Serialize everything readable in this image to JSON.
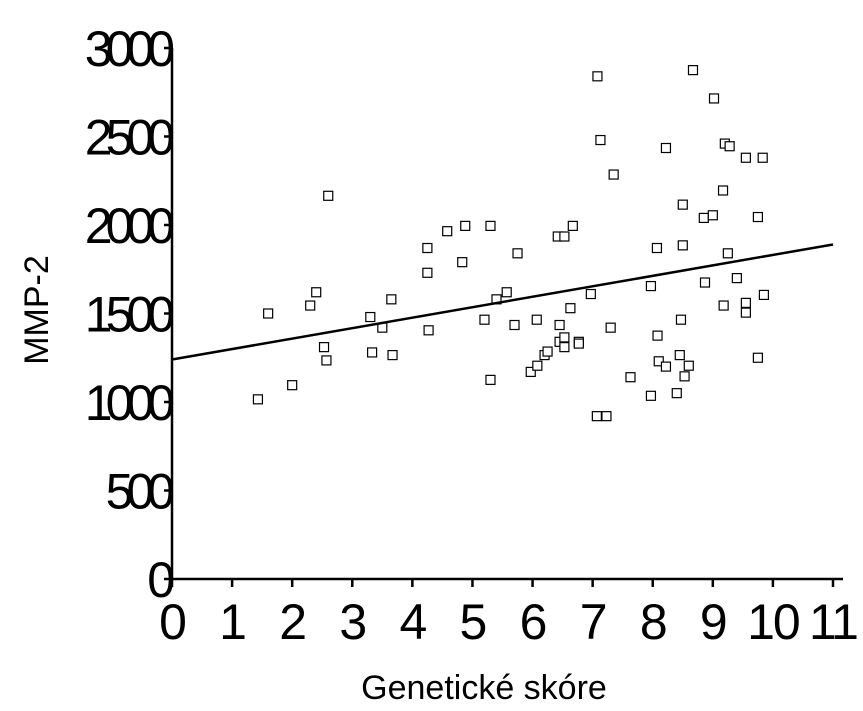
{
  "chart_data": {
    "type": "scatter",
    "title": "",
    "xlabel": "Genetické skóre",
    "ylabel": "MMP-2",
    "xlim": [
      0,
      11
    ],
    "ylim": [
      0,
      3000
    ],
    "x_ticks": [
      "0",
      "1",
      "2",
      "3",
      "4",
      "5",
      "6",
      "7",
      "8",
      "9",
      "10",
      "11"
    ],
    "y_ticks": [
      "0",
      "500",
      "1000",
      "1500",
      "2000",
      "2500",
      "3000"
    ],
    "grid": false,
    "marker": "open-square",
    "trendline": {
      "type": "linear",
      "x": [
        0,
        11
      ],
      "y": [
        1240,
        1890
      ]
    },
    "series": [
      {
        "points": [
          [
            1.43,
            1015
          ],
          [
            1.6,
            1500
          ],
          [
            2.0,
            1095
          ],
          [
            2.3,
            1545
          ],
          [
            2.4,
            1620
          ],
          [
            2.53,
            1310
          ],
          [
            2.57,
            1235
          ],
          [
            2.6,
            2165
          ],
          [
            3.3,
            1480
          ],
          [
            3.33,
            1280
          ],
          [
            3.5,
            1420
          ],
          [
            3.65,
            1580
          ],
          [
            3.67,
            1265
          ],
          [
            4.25,
            1870
          ],
          [
            4.25,
            1730
          ],
          [
            4.27,
            1405
          ],
          [
            4.58,
            1965
          ],
          [
            4.83,
            1790
          ],
          [
            4.88,
            1995
          ],
          [
            5.2,
            1465
          ],
          [
            5.3,
            1995
          ],
          [
            5.3,
            1125
          ],
          [
            5.4,
            1580
          ],
          [
            5.57,
            1620
          ],
          [
            5.7,
            1435
          ],
          [
            5.75,
            1840
          ],
          [
            5.97,
            1170
          ],
          [
            6.07,
            1465
          ],
          [
            6.08,
            1205
          ],
          [
            6.2,
            1265
          ],
          [
            6.25,
            1285
          ],
          [
            6.42,
            1935
          ],
          [
            6.45,
            1435
          ],
          [
            6.45,
            1340
          ],
          [
            6.53,
            1935
          ],
          [
            6.53,
            1365
          ],
          [
            6.53,
            1310
          ],
          [
            6.63,
            1530
          ],
          [
            6.67,
            1995
          ],
          [
            6.77,
            1340
          ],
          [
            6.77,
            1330
          ],
          [
            6.97,
            1610
          ],
          [
            7.07,
            920
          ],
          [
            7.08,
            2840
          ],
          [
            7.13,
            2480
          ],
          [
            7.23,
            920
          ],
          [
            7.3,
            1420
          ],
          [
            7.35,
            2285
          ],
          [
            7.63,
            1140
          ],
          [
            7.97,
            1655
          ],
          [
            7.97,
            1035
          ],
          [
            8.07,
            1870
          ],
          [
            8.08,
            1375
          ],
          [
            8.1,
            1230
          ],
          [
            8.22,
            2435
          ],
          [
            8.22,
            1200
          ],
          [
            8.4,
            1050
          ],
          [
            8.45,
            1265
          ],
          [
            8.47,
            1465
          ],
          [
            8.5,
            2115
          ],
          [
            8.5,
            1885
          ],
          [
            8.53,
            1145
          ],
          [
            8.6,
            1205
          ],
          [
            8.67,
            2875
          ],
          [
            8.85,
            2040
          ],
          [
            8.87,
            1675
          ],
          [
            9.0,
            2055
          ],
          [
            9.02,
            2715
          ],
          [
            9.17,
            2195
          ],
          [
            9.18,
            1545
          ],
          [
            9.2,
            2460
          ],
          [
            9.25,
            1840
          ],
          [
            9.28,
            2445
          ],
          [
            9.4,
            1700
          ],
          [
            9.55,
            2380
          ],
          [
            9.55,
            1560
          ],
          [
            9.55,
            1505
          ],
          [
            9.75,
            2045
          ],
          [
            9.75,
            1250
          ],
          [
            9.83,
            2380
          ],
          [
            9.85,
            1605
          ]
        ]
      }
    ]
  }
}
